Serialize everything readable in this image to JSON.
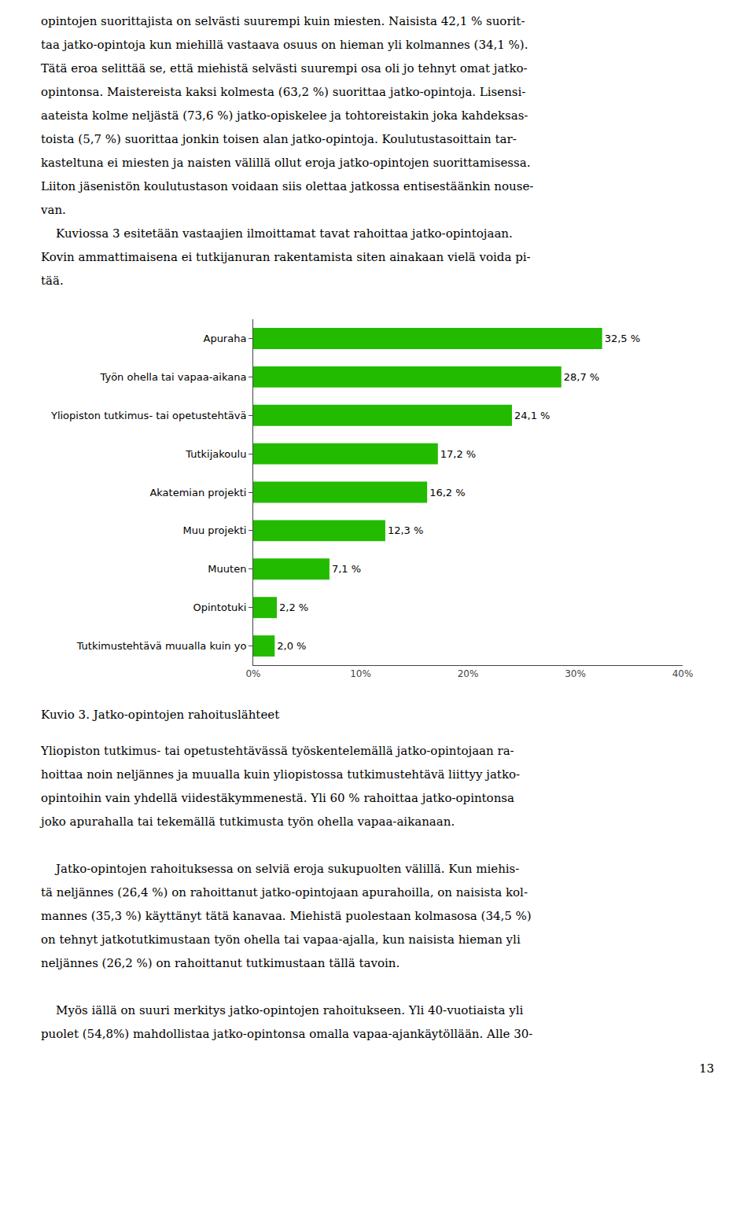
{
  "chart_data": {
    "type": "bar",
    "orientation": "horizontal",
    "title": "Kuvio 3. Jatko-opintojen rahoituslähteet",
    "categories": [
      "Apuraha",
      "Työn ohella tai vapaa-aikana",
      "Yliopiston tutkimus- tai opetustehtävä",
      "Tutkijakoulu",
      "Akatemian projekti",
      "Muu projekti",
      "Muuten",
      "Opintotuki",
      "Tutkimustehtävä muualla kuin yo"
    ],
    "values": [
      32.5,
      28.7,
      24.1,
      17.2,
      16.2,
      12.3,
      7.1,
      2.2,
      2.0
    ],
    "value_labels": [
      "32,5 %",
      "28,7 %",
      "24,1 %",
      "17,2 %",
      "16,2 %",
      "12,3 %",
      "7,1 %",
      "2,2 %",
      "2,0 %"
    ],
    "data_labels": true,
    "color": "#22bb00",
    "xlim": [
      0,
      40
    ],
    "xticks": [
      {
        "value": 0,
        "label": "0%"
      },
      {
        "value": 10,
        "label": "10%"
      },
      {
        "value": 20,
        "label": "20%"
      },
      {
        "value": 30,
        "label": "30%"
      },
      {
        "value": 40,
        "label": "40%"
      }
    ],
    "grid": false
  },
  "page_text": {
    "above": [
      "opintojen suorittajista on selvästi suurempi kuin miesten. Naisista 42,1 % suorit-",
      "taa jatko-opintoja kun miehillä vastaava osuus on hieman yli kolmannes (34,1 %).",
      "Tätä eroa selittää se, että miehistä selvästi suurempi osa oli jo tehnyt omat jatko-",
      "opintonsa. Maistereista kaksi kolmesta (63,2 %) suorittaa jatko-opintoja. Lisensi-",
      "aateista kolme neljästä (73,6 %) jatko-opiskelee ja tohtoreistakin joka kahdeksas-",
      "toista (5,7 %) suorittaa jonkin toisen alan jatko-opintoja. Koulutustasoittain tar-",
      "kasteltuna ei miesten ja naisten välillä ollut eroja jatko-opintojen suorittamisessa.",
      "Liiton jäsenistön koulutustason voidaan siis olettaa jatkossa entisestäänkin nouse-",
      "van.",
      "    Kuviossa 3 esitetään vastaajien ilmoittamat tavat rahoittaa jatko-opintojaan.",
      "Kovin ammattimaisena ei tutkijanuran rakentamista siten ainakaan vielä voida pi-",
      "tää."
    ],
    "below": [
      [
        "Yliopiston tutkimus- tai opetustehtävässä työskentelemällä jatko-opintojaan ra-",
        "hoittaa noin neljännes ja muualla kuin yliopistossa tutkimustehtävä liittyy jatko-",
        "opintoihin vain yhdellä viidestäkymmenestä. Yli 60 % rahoittaa jatko-opintonsa",
        "joko apurahalla tai tekemällä tutkimusta työn ohella vapaa-aikanaan."
      ],
      [
        "    Jatko-opintojen rahoituksessa on selviä eroja sukupuolten välillä. Kun miehis-",
        "tä neljännes (26,4 %) on rahoittanut jatko-opintojaan apurahoilla, on naisista kol-",
        "mannes (35,3 %) käyttänyt tätä kanavaa. Miehistä puolestaan kolmasosa (34,5 %)",
        "on tehnyt jatkotutkimustaan työn ohella tai vapaa-ajalla, kun naisista hieman yli",
        "neljännes (26,2 %) on rahoittanut tutkimustaan tällä tavoin."
      ],
      [
        "    Myös iällä on suuri merkitys jatko-opintojen rahoitukseen. Yli 40-vuotiaista yli",
        "puolet (54,8%) mahdollistaa jatko-opintonsa omalla vapaa-ajankäytöllään. Alle 30-"
      ]
    ],
    "page_number": "13"
  }
}
